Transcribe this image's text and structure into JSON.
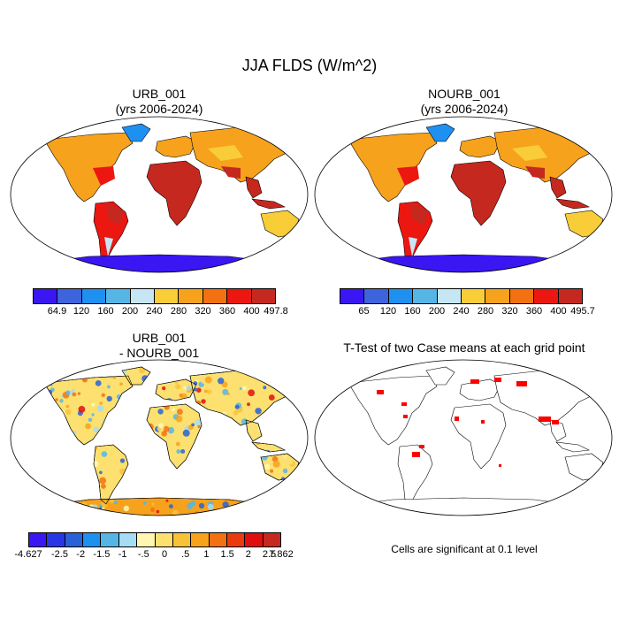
{
  "figure_title": "JJA FLDS (W/m^2)",
  "panels": [
    {
      "title_line1": "URB_001",
      "title_line2": "(yrs 2006-2024)",
      "colorbar": {
        "colors": [
          "#3a16f2",
          "#3d64dc",
          "#1e90f0",
          "#55b6e6",
          "#c6e6f6",
          "#f8cd38",
          "#f7a21c",
          "#f27212",
          "#ec1710",
          "#c5281f"
        ],
        "labels": [
          "64.9",
          "120",
          "160",
          "200",
          "240",
          "280",
          "320",
          "360",
          "400",
          "497.8"
        ]
      }
    },
    {
      "title_line1": "NOURB_001",
      "title_line2": "(yrs 2006-2024)",
      "colorbar": {
        "colors": [
          "#3a16f2",
          "#3d64dc",
          "#1e90f0",
          "#55b6e6",
          "#c6e6f6",
          "#f8cd38",
          "#f7a21c",
          "#f27212",
          "#ec1710",
          "#c5281f"
        ],
        "labels": [
          "65",
          "120",
          "160",
          "200",
          "240",
          "280",
          "320",
          "360",
          "400",
          "495.7"
        ]
      }
    },
    {
      "title_line1": "URB_001",
      "title_line2": "- NOURB_001",
      "colorbar": {
        "colors": [
          "#3a16f2",
          "#2836e6",
          "#2962d8",
          "#1e90f0",
          "#55b6e6",
          "#a6dcf4",
          "#fff7b0",
          "#fce070",
          "#f8c238",
          "#f7a21c",
          "#f27212",
          "#ec3a10",
          "#e00e0e",
          "#c5281f"
        ],
        "labels": [
          "-4.627",
          "-2.5",
          "-2",
          "-1.5",
          "-1",
          "-.5",
          "0",
          ".5",
          "1",
          "1.5",
          "2",
          "2.5",
          "7.862"
        ]
      }
    },
    {
      "title_line1": "T-Test of two Case means at each grid point",
      "note": "Cells are significant at 0.1 level"
    }
  ]
}
